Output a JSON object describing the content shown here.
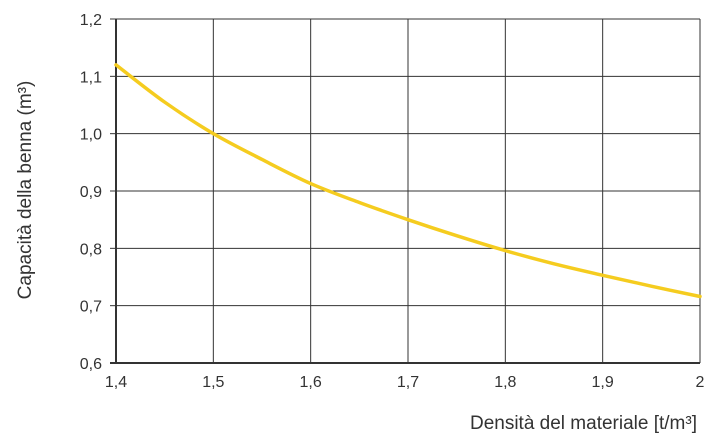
{
  "chart_data": {
    "type": "line",
    "title": "",
    "xlabel": "Densità del materiale [t/m³]",
    "ylabel": "Capacità della benna (m³)",
    "xlim": [
      1.4,
      2.0
    ],
    "ylim": [
      0.6,
      1.2
    ],
    "x_ticks": [
      "1,4",
      "1,5",
      "1,6",
      "1,7",
      "1,8",
      "1,9",
      "2"
    ],
    "y_ticks": [
      "0,6",
      "0,7",
      "0,8",
      "0,9",
      "1,0",
      "1,1",
      "1,2"
    ],
    "grid": true,
    "legend": "none",
    "series": [
      {
        "color": "#f5cc1f",
        "x": [
          1.4,
          1.45,
          1.5,
          1.55,
          1.6,
          1.65,
          1.7,
          1.75,
          1.8,
          1.85,
          1.9,
          1.95,
          2.0
        ],
        "y": [
          1.12,
          1.055,
          1.0,
          0.955,
          0.913,
          0.88,
          0.85,
          0.822,
          0.796,
          0.773,
          0.753,
          0.734,
          0.716
        ]
      }
    ]
  }
}
